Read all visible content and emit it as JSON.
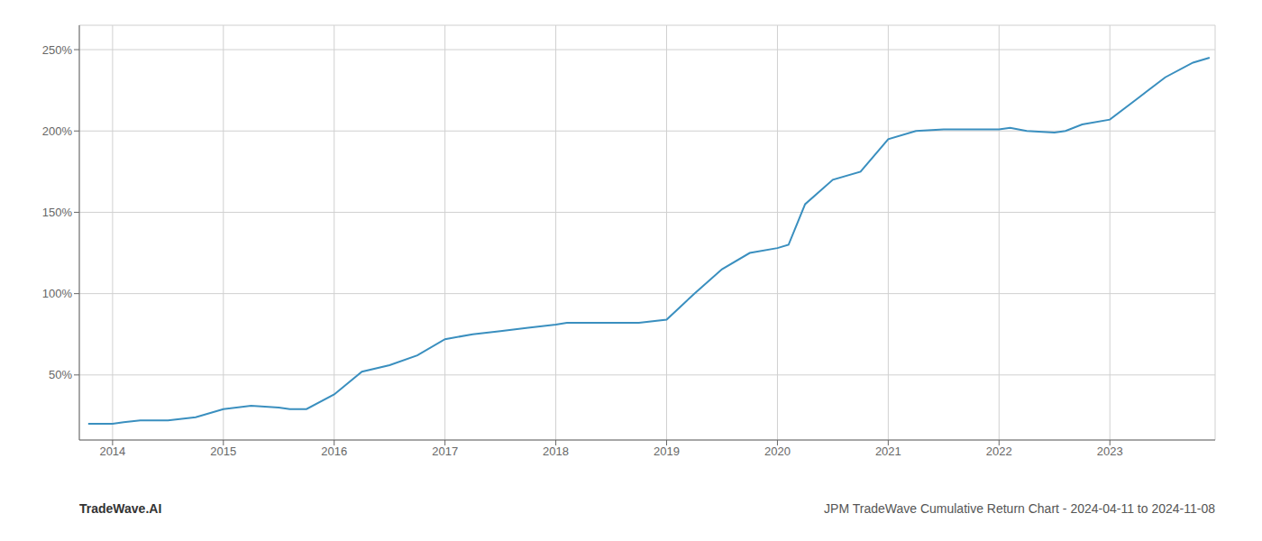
{
  "chart_data": {
    "type": "line",
    "title": "JPM TradeWave Cumulative Return Chart - 2024-04-11 to 2024-11-08",
    "annotations": [
      "TradeWave.AI"
    ],
    "x": [
      2013.78,
      2013.9,
      2014.0,
      2014.1,
      2014.25,
      2014.5,
      2014.75,
      2015.0,
      2015.25,
      2015.5,
      2015.6,
      2015.75,
      2016.0,
      2016.25,
      2016.5,
      2016.75,
      2017.0,
      2017.25,
      2017.5,
      2017.75,
      2018.0,
      2018.1,
      2018.25,
      2018.5,
      2018.75,
      2019.0,
      2019.25,
      2019.5,
      2019.75,
      2020.0,
      2020.1,
      2020.25,
      2020.5,
      2020.75,
      2021.0,
      2021.25,
      2021.5,
      2021.75,
      2022.0,
      2022.1,
      2022.25,
      2022.5,
      2022.6,
      2022.75,
      2023.0,
      2023.25,
      2023.5,
      2023.75,
      2023.9
    ],
    "values": [
      20,
      20,
      20,
      21,
      22,
      22,
      24,
      29,
      31,
      30,
      29,
      29,
      38,
      52,
      56,
      62,
      72,
      75,
      77,
      79,
      81,
      82,
      82,
      82,
      82,
      84,
      100,
      115,
      125,
      128,
      130,
      155,
      170,
      175,
      195,
      200,
      201,
      201,
      201,
      202,
      200,
      199,
      200,
      204,
      207,
      220,
      233,
      242,
      245
    ],
    "color": "#3a8fbf",
    "xlim": [
      2013.7,
      2023.95
    ],
    "ylim": [
      10,
      265
    ],
    "xticks": [
      2014,
      2015,
      2016,
      2017,
      2018,
      2019,
      2020,
      2021,
      2022,
      2023
    ],
    "yticks": [
      {
        "value": 50,
        "label": "50%"
      },
      {
        "value": 100,
        "label": "100%"
      },
      {
        "value": 150,
        "label": "150%"
      },
      {
        "value": 200,
        "label": "200%"
      },
      {
        "value": 250,
        "label": "250%"
      }
    ],
    "grid": true
  }
}
